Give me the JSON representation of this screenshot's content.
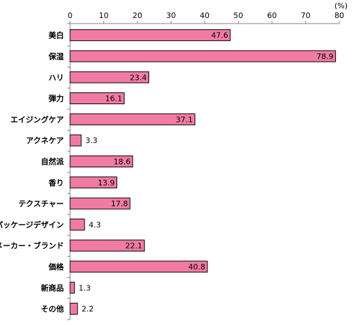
{
  "chart_data": {
    "type": "bar",
    "orientation": "horizontal",
    "unit": "(%)",
    "categories": [
      "美白",
      "保湿",
      "ハリ",
      "弾力",
      "エイジングケア",
      "アクネケア",
      "自然派",
      "香り",
      "テクスチャー",
      "パッケージデザイン",
      "メーカー・ブランド",
      "価格",
      "新商品",
      "その他"
    ],
    "values": [
      47.6,
      78.9,
      23.4,
      16.1,
      37.1,
      3.3,
      18.6,
      13.9,
      17.8,
      4.3,
      22.1,
      40.8,
      1.3,
      2.2
    ],
    "value_labels": [
      "47.6",
      "78.9",
      "23.4",
      "16.1",
      "37.1",
      "3.3",
      "18.6",
      "13.9",
      "17.8",
      "4.3",
      "22.1",
      "40.8",
      "1.3",
      "2.2"
    ],
    "xlim": [
      0,
      80
    ],
    "xticks": [
      "0",
      "10",
      "20",
      "30",
      "40",
      "50",
      "60",
      "70",
      "80"
    ],
    "axis_position": "top",
    "grid": false,
    "colors": {
      "bar_fill": "#F27BA3",
      "bar_stroke": "#000000",
      "axis": "#808080"
    }
  }
}
